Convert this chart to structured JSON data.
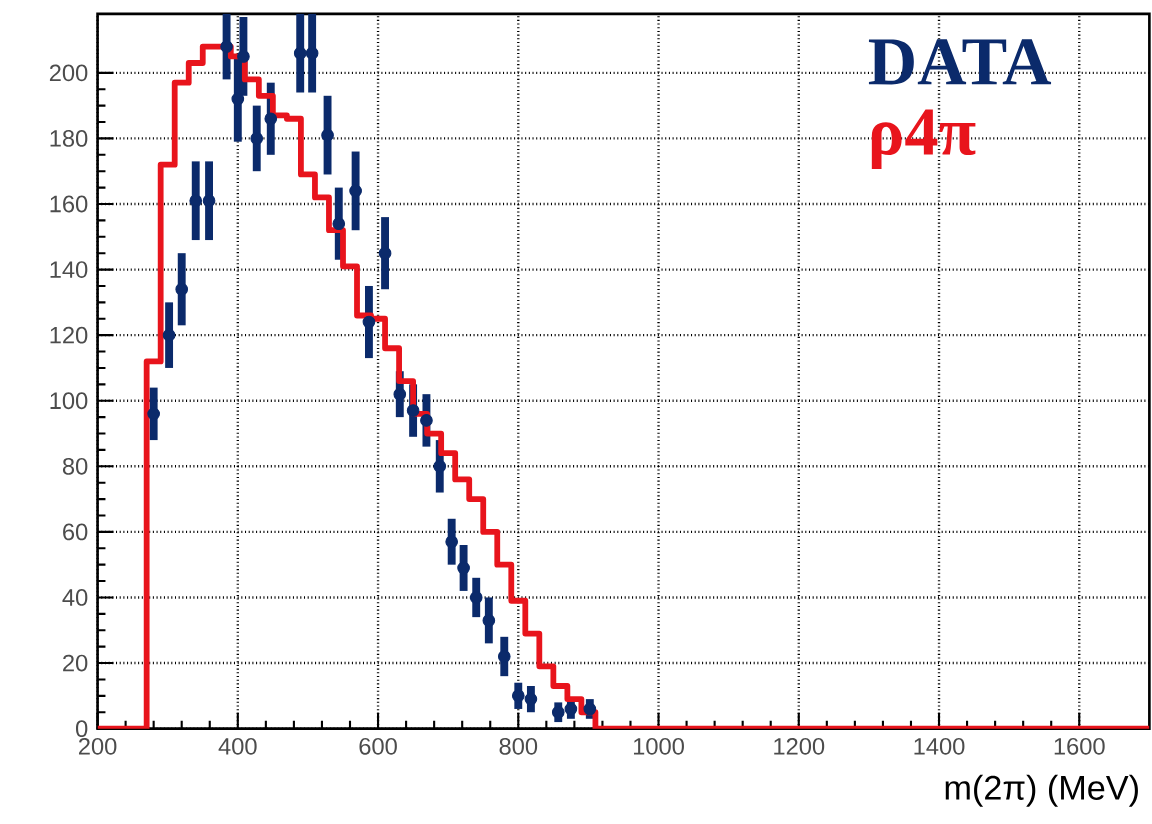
{
  "chart_data": {
    "type": "histogram",
    "xlabel": "m(2π) (MeV)",
    "xlim": [
      200,
      1700
    ],
    "ylim": [
      0,
      218
    ],
    "xticks": [
      200,
      400,
      600,
      800,
      1000,
      1200,
      1400,
      1600
    ],
    "yticks": [
      0,
      20,
      40,
      60,
      80,
      100,
      120,
      140,
      160,
      180,
      200
    ],
    "grid": true,
    "legend": "top right",
    "series": [
      {
        "name": "DATA",
        "type": "scatter",
        "color": "#0b2a6b",
        "x": [
          280,
          302,
          320,
          340,
          359,
          384,
          400,
          408,
          427,
          447,
          489,
          506,
          528,
          544,
          568,
          587,
          610,
          631,
          650,
          669,
          688,
          705,
          722,
          740,
          758,
          780,
          800,
          818,
          857,
          875,
          902
        ],
        "values": [
          96,
          120,
          134,
          161,
          161,
          208,
          192,
          205,
          180,
          186,
          206,
          206,
          181,
          154,
          164,
          124,
          145,
          102,
          97,
          94,
          80,
          57,
          49,
          40,
          33,
          22,
          10,
          9,
          5,
          6,
          6
        ],
        "errors": [
          8,
          10,
          11,
          12,
          12,
          10,
          13,
          12,
          10,
          11,
          12,
          12,
          12,
          11,
          12,
          11,
          11,
          7,
          8,
          8,
          8,
          7,
          7,
          6,
          7,
          6,
          4,
          4,
          3,
          3,
          3
        ]
      },
      {
        "name": "ρ4π",
        "type": "histogram",
        "color": "#e8141c",
        "bins": [
          200,
          270,
          290,
          310,
          330,
          350,
          370,
          390,
          410,
          430,
          450,
          470,
          490,
          510,
          530,
          550,
          570,
          590,
          610,
          630,
          650,
          670,
          690,
          710,
          730,
          750,
          770,
          790,
          810,
          830,
          850,
          870,
          890,
          910,
          1700
        ],
        "values": [
          0,
          112,
          172,
          197,
          203,
          208,
          208,
          205,
          198,
          193,
          187,
          186,
          169,
          162,
          152,
          141,
          126,
          125,
          116,
          106,
          96,
          90,
          84,
          76,
          70,
          60,
          50,
          39,
          29,
          19,
          13,
          9,
          5,
          0
        ]
      }
    ]
  }
}
